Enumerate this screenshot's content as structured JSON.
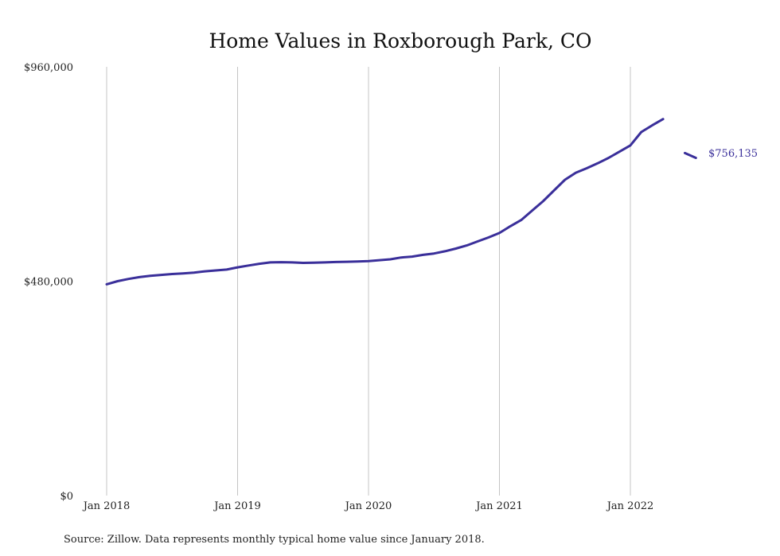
{
  "chart_data": {
    "type": "line",
    "title": "Home Values in Roxborough Park, CO",
    "xlabel": "",
    "ylabel": "",
    "ylim": [
      0,
      960000
    ],
    "y_ticks": [
      {
        "value": 0,
        "label": "$0"
      },
      {
        "value": 480000,
        "label": "$480,000"
      },
      {
        "value": 960000,
        "label": "$960,000"
      }
    ],
    "x_ticks": [
      {
        "value": "2018-01",
        "label": "Jan 2018"
      },
      {
        "value": "2019-01",
        "label": "Jan 2019"
      },
      {
        "value": "2020-01",
        "label": "Jan 2020"
      },
      {
        "value": "2021-01",
        "label": "Jan 2021"
      },
      {
        "value": "2022-01",
        "label": "Jan 2022"
      }
    ],
    "grid": {
      "vertical": true,
      "horizontal": false
    },
    "legend": "none",
    "line_color": "#3a2f9a",
    "end_label": "$756,135",
    "series": [
      {
        "x": [
          "2018-01",
          "2018-02",
          "2018-03",
          "2018-04",
          "2018-05",
          "2018-06",
          "2018-07",
          "2018-08",
          "2018-09",
          "2018-10",
          "2018-11",
          "2018-12",
          "2019-01",
          "2019-02",
          "2019-03",
          "2019-04",
          "2019-05",
          "2019-06",
          "2019-07",
          "2019-08",
          "2019-09",
          "2019-10",
          "2019-11",
          "2019-12",
          "2020-01",
          "2020-02",
          "2020-03",
          "2020-04",
          "2020-05",
          "2020-06",
          "2020-07",
          "2020-08",
          "2020-09",
          "2020-10",
          "2020-11",
          "2020-12",
          "2021-01",
          "2021-02",
          "2021-03",
          "2021-04",
          "2021-05",
          "2021-06",
          "2021-07",
          "2021-08",
          "2021-09",
          "2021-10",
          "2021-11",
          "2021-12",
          "2022-01",
          "2022-02",
          "2022-03",
          "2022-04"
        ],
        "values": [
          473000,
          480000,
          485000,
          489000,
          492000,
          494000,
          496000,
          497500,
          499000,
          502000,
          504000,
          506000,
          511000,
          515000,
          519000,
          522000,
          522500,
          522000,
          521000,
          521500,
          522000,
          523000,
          523500,
          524000,
          525000,
          527000,
          529000,
          533000,
          535000,
          539000,
          542000,
          547000,
          553000,
          560000,
          569000,
          578000,
          588000,
          603000,
          617000,
          638000,
          659000,
          683000,
          707000,
          723000,
          733000,
          744000,
          756000,
          770000,
          784000,
          814000,
          829000,
          843000
        ]
      },
      {
        "x": [
          "2022-06",
          "2022-07"
        ],
        "values": [
          767000,
          756135
        ]
      }
    ]
  },
  "source_note": "Source: Zillow. Data represents monthly typical home value since January 2018."
}
